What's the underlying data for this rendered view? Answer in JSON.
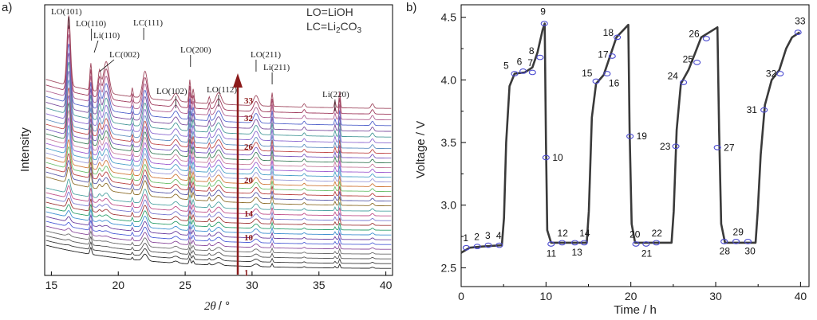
{
  "chart_data": [
    {
      "panel_label": "a)",
      "type": "line",
      "xlabel_main": "2θ",
      "xlabel_unit": "°",
      "ylabel": "Intensity",
      "xlim": [
        14.5,
        40.5
      ],
      "x_ticks": [
        15,
        20,
        25,
        30,
        35,
        40
      ],
      "legend_lines": [
        "LO=LiOH",
        "LC=Li2CO3"
      ],
      "legend_position": "top-right",
      "peak_labels": [
        {
          "text": "LO(101)",
          "x": 16.3
        },
        {
          "text": "LO(110)",
          "x": 18.0
        },
        {
          "text": "Li(110)",
          "x": 18.2
        },
        {
          "text": "LC(002)",
          "x": 18.6
        },
        {
          "text": "LC(111)",
          "x": 21.9
        },
        {
          "text": "LO(102)",
          "x": 24.3
        },
        {
          "text": "LO(200)",
          "x": 25.4
        },
        {
          "text": "LO(112)",
          "x": 27.5
        },
        {
          "text": "LO(211)",
          "x": 30.3
        },
        {
          "text": "Li(211)",
          "x": 31.5
        },
        {
          "text": "Li(220)",
          "x": 36.2
        }
      ],
      "arrow_labels": [
        "1",
        "10",
        "14",
        "20",
        "26",
        "32",
        "33"
      ],
      "pattern_count": 33,
      "grid": false
    },
    {
      "panel_label": "b)",
      "type": "line",
      "xlabel": "Time / h",
      "ylabel": "Voltage / V",
      "xlim": [
        0,
        41
      ],
      "ylim": [
        2.35,
        4.6
      ],
      "x_ticks": [
        0,
        10,
        20,
        30,
        40
      ],
      "y_ticks": [
        2.5,
        3.0,
        3.5,
        4.0,
        4.5
      ],
      "curve": [
        [
          0,
          2.62
        ],
        [
          1,
          2.66
        ],
        [
          2.5,
          2.67
        ],
        [
          4.8,
          2.68
        ],
        [
          5.05,
          2.9
        ],
        [
          5.3,
          3.5
        ],
        [
          5.7,
          3.95
        ],
        [
          6.3,
          4.05
        ],
        [
          7.5,
          4.06
        ],
        [
          8.4,
          4.1
        ],
        [
          9.0,
          4.22
        ],
        [
          9.6,
          4.4
        ],
        [
          9.85,
          4.45
        ],
        [
          10.0,
          3.5
        ],
        [
          10.15,
          2.8
        ],
        [
          10.6,
          2.7
        ],
        [
          14.8,
          2.7
        ],
        [
          15.05,
          2.95
        ],
        [
          15.4,
          3.7
        ],
        [
          15.9,
          3.97
        ],
        [
          16.8,
          4.04
        ],
        [
          17.5,
          4.18
        ],
        [
          18.3,
          4.34
        ],
        [
          19.7,
          4.44
        ],
        [
          19.85,
          3.6
        ],
        [
          20.1,
          2.85
        ],
        [
          20.5,
          2.7
        ],
        [
          24.8,
          2.7
        ],
        [
          25.05,
          2.95
        ],
        [
          25.4,
          3.6
        ],
        [
          25.9,
          3.97
        ],
        [
          26.8,
          4.08
        ],
        [
          27.5,
          4.2
        ],
        [
          28.3,
          4.34
        ],
        [
          30.2,
          4.42
        ],
        [
          30.4,
          3.6
        ],
        [
          30.65,
          2.85
        ],
        [
          31.1,
          2.7
        ],
        [
          34.7,
          2.7
        ],
        [
          34.95,
          2.95
        ],
        [
          35.3,
          3.4
        ],
        [
          35.8,
          3.8
        ],
        [
          36.6,
          4.0
        ],
        [
          37.5,
          4.08
        ],
        [
          38.3,
          4.25
        ],
        [
          39.0,
          4.34
        ],
        [
          39.9,
          4.38
        ]
      ],
      "points": [
        {
          "label": "1",
          "t": 0.6,
          "v": 2.66
        },
        {
          "label": "2",
          "t": 1.9,
          "v": 2.67
        },
        {
          "label": "3",
          "t": 3.2,
          "v": 2.68
        },
        {
          "label": "4",
          "t": 4.5,
          "v": 2.68
        },
        {
          "label": "5",
          "t": 6.3,
          "v": 4.05
        },
        {
          "label": "6",
          "t": 7.3,
          "v": 4.07
        },
        {
          "label": "7",
          "t": 8.4,
          "v": 4.06
        },
        {
          "label": "8",
          "t": 9.3,
          "v": 4.18
        },
        {
          "label": "9",
          "t": 9.8,
          "v": 4.45
        },
        {
          "label": "10",
          "t": 10.0,
          "v": 3.38
        },
        {
          "label": "11",
          "t": 10.6,
          "v": 2.69
        },
        {
          "label": "12",
          "t": 11.9,
          "v": 2.7
        },
        {
          "label": "13",
          "t": 13.4,
          "v": 2.7
        },
        {
          "label": "14",
          "t": 14.5,
          "v": 2.7
        },
        {
          "label": "15",
          "t": 15.9,
          "v": 3.99
        },
        {
          "label": "16",
          "t": 17.2,
          "v": 4.05
        },
        {
          "label": "17",
          "t": 17.8,
          "v": 4.19
        },
        {
          "label": "18",
          "t": 18.4,
          "v": 4.34
        },
        {
          "label": "19",
          "t": 19.9,
          "v": 3.55
        },
        {
          "label": "20",
          "t": 20.6,
          "v": 2.69
        },
        {
          "label": "21",
          "t": 21.8,
          "v": 2.69
        },
        {
          "label": "22",
          "t": 23.0,
          "v": 2.7
        },
        {
          "label": "23",
          "t": 25.3,
          "v": 3.47
        },
        {
          "label": "24",
          "t": 26.2,
          "v": 3.98
        },
        {
          "label": "25",
          "t": 27.8,
          "v": 4.14
        },
        {
          "label": "26",
          "t": 28.9,
          "v": 4.33
        },
        {
          "label": "27",
          "t": 30.2,
          "v": 3.46
        },
        {
          "label": "28",
          "t": 31.0,
          "v": 2.71
        },
        {
          "label": "29",
          "t": 32.4,
          "v": 2.71
        },
        {
          "label": "30",
          "t": 33.8,
          "v": 2.71
        },
        {
          "label": "31",
          "t": 35.7,
          "v": 3.76
        },
        {
          "label": "32",
          "t": 37.6,
          "v": 4.05
        },
        {
          "label": "33",
          "t": 39.7,
          "v": 4.38
        }
      ],
      "grid": false
    }
  ]
}
